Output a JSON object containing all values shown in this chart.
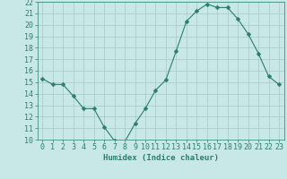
{
  "x": [
    0,
    1,
    2,
    3,
    4,
    5,
    6,
    7,
    8,
    9,
    10,
    11,
    12,
    13,
    14,
    15,
    16,
    17,
    18,
    19,
    20,
    21,
    22,
    23
  ],
  "y": [
    15.3,
    14.8,
    14.8,
    13.8,
    12.7,
    12.7,
    11.1,
    9.9,
    9.8,
    11.4,
    12.7,
    14.3,
    15.2,
    17.7,
    20.3,
    21.2,
    21.8,
    21.5,
    21.5,
    20.5,
    19.2,
    17.5,
    15.5,
    14.8
  ],
  "line_color": "#2d7d6e",
  "marker": "D",
  "marker_size": 2.5,
  "bg_color": "#c8e8e8",
  "grid_color": "#a8c8c8",
  "xlabel": "Humidex (Indice chaleur)",
  "ylim": [
    10,
    22
  ],
  "xlim": [
    -0.5,
    23.5
  ],
  "yticks": [
    10,
    11,
    12,
    13,
    14,
    15,
    16,
    17,
    18,
    19,
    20,
    21,
    22
  ],
  "xticks": [
    0,
    1,
    2,
    3,
    4,
    5,
    6,
    7,
    8,
    9,
    10,
    11,
    12,
    13,
    14,
    15,
    16,
    17,
    18,
    19,
    20,
    21,
    22,
    23
  ],
  "tick_color": "#2d7d6e",
  "label_color": "#2d7d6e",
  "font_size": 6.5
}
